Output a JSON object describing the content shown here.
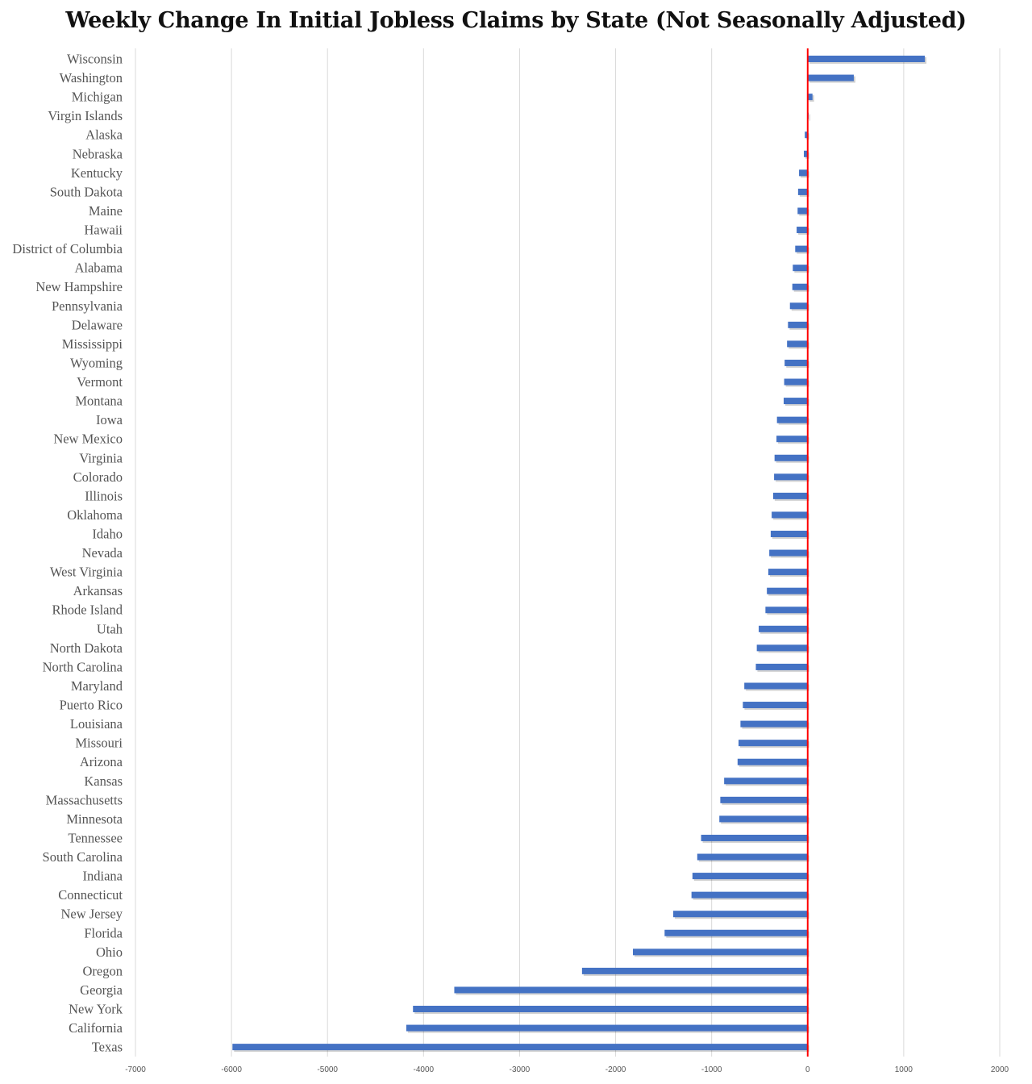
{
  "chart_data": {
    "type": "bar",
    "orientation": "horizontal",
    "title": "Weekly Change In Initial Jobless Claims by State (Not Seasonally Adjusted)",
    "xlabel": "",
    "ylabel": "",
    "xlim": [
      -7000,
      2000
    ],
    "xticks": [
      "-7000",
      "-6000",
      "-5000",
      "-4000",
      "-3000",
      "-2000",
      "-1000",
      "0",
      "1000",
      "2000"
    ],
    "grid": "vertical",
    "legend": "none",
    "bar_color": "#4472C4",
    "zero_line_color": "#FF0000",
    "gridline_color": "#D9D9D9",
    "categories": [
      "Wisconsin",
      "Washington",
      "Michigan",
      "Virgin Islands",
      "Alaska",
      "Nebraska",
      "Kentucky",
      "South Dakota",
      "Maine",
      "Hawaii",
      "District of Columbia",
      "Alabama",
      "New Hampshire",
      "Pennsylvania",
      "Delaware",
      "Mississippi",
      "Wyoming",
      "Vermont",
      "Montana",
      "Iowa",
      "New Mexico",
      "Virginia",
      "Colorado",
      "Illinois",
      "Oklahoma",
      "Idaho",
      "Nevada",
      "West Virginia",
      "Arkansas",
      "Rhode Island",
      "Utah",
      "North Dakota",
      "North Carolina",
      "Maryland",
      "Puerto Rico",
      "Louisiana",
      "Missouri",
      "Arizona",
      "Kansas",
      "Massachusetts",
      "Minnesota",
      "Tennessee",
      "South Carolina",
      "Indiana",
      "Connecticut",
      "New Jersey",
      "Florida",
      "Ohio",
      "Oregon",
      "Georgia",
      "New York",
      "California",
      "Texas"
    ],
    "values": [
      1220,
      480,
      50,
      10,
      -30,
      -40,
      -90,
      -100,
      -105,
      -115,
      -130,
      -155,
      -160,
      -185,
      -205,
      -215,
      -240,
      -245,
      -250,
      -320,
      -325,
      -345,
      -350,
      -360,
      -375,
      -385,
      -400,
      -410,
      -425,
      -440,
      -510,
      -530,
      -540,
      -660,
      -675,
      -700,
      -720,
      -730,
      -870,
      -910,
      -920,
      -1110,
      -1150,
      -1200,
      -1210,
      -1400,
      -1490,
      -1820,
      -2350,
      -3680,
      -4110,
      -4180,
      -5990
    ]
  }
}
